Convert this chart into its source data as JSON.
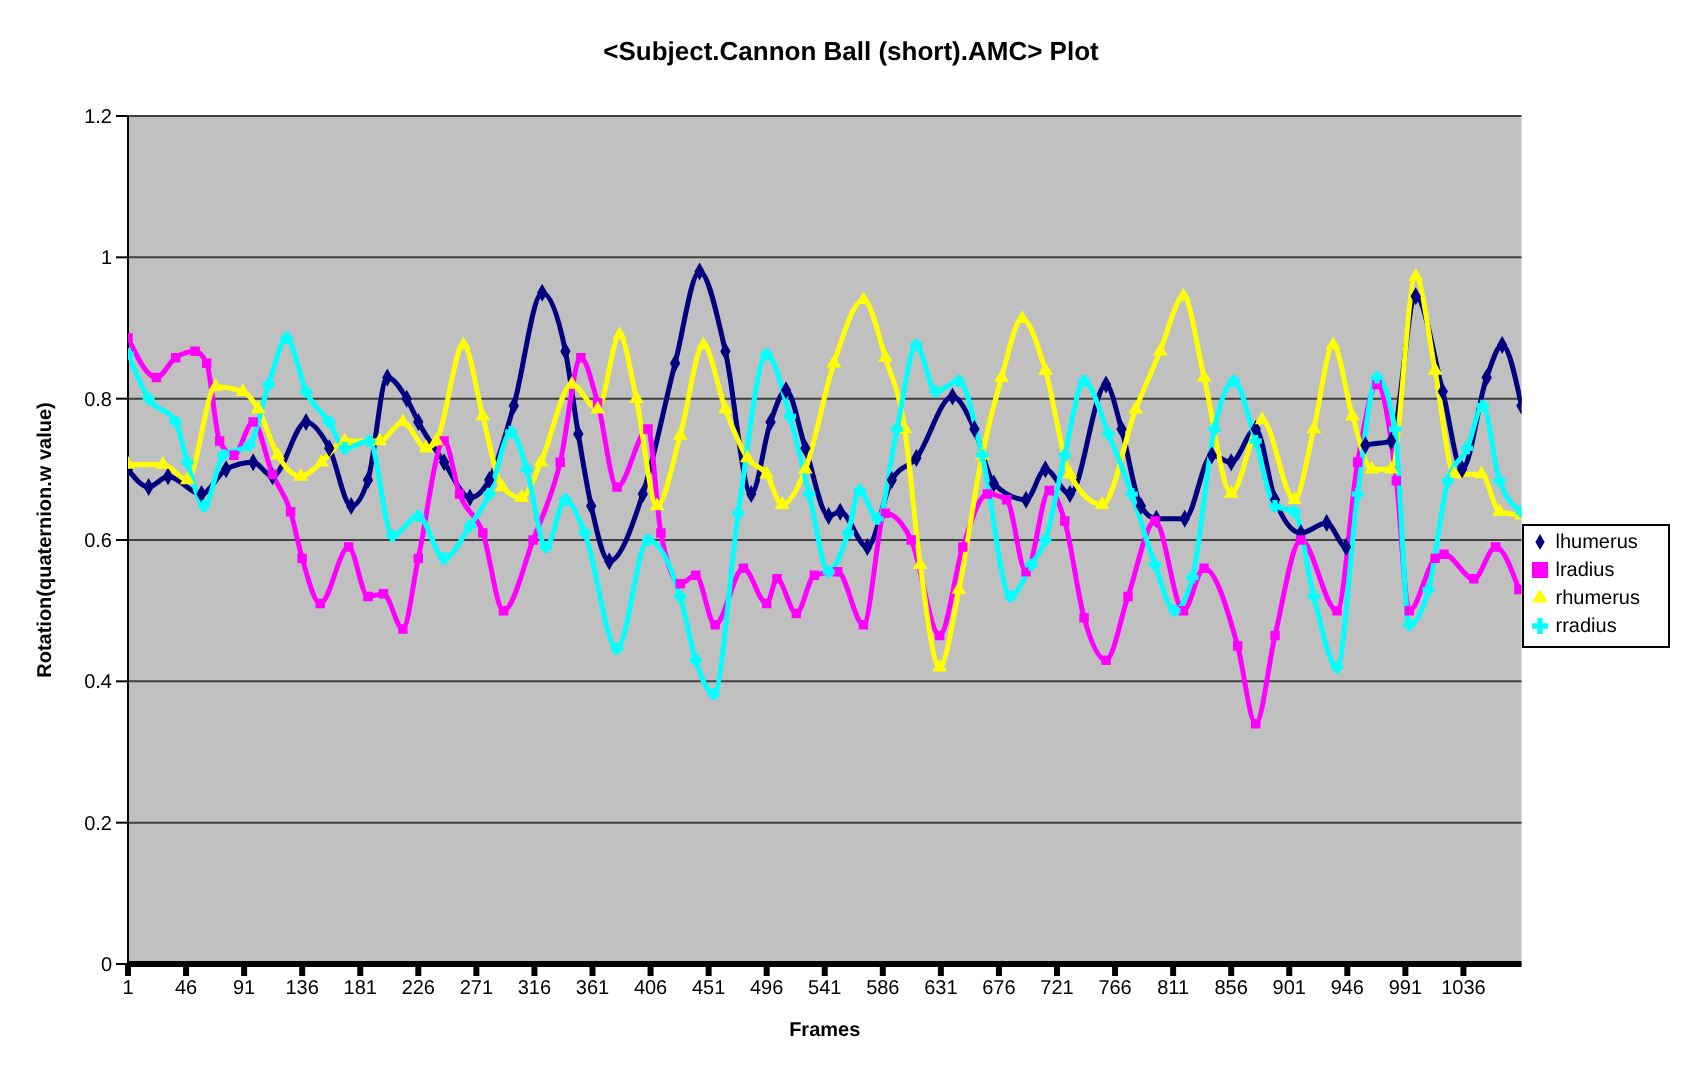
{
  "chart_data": {
    "type": "line",
    "title": "<Subject.Cannon Ball (short).AMC> Plot",
    "xlabel": "Frames",
    "ylabel": "Rotation(quaternion.w value)",
    "xlim": [
      1,
      1081
    ],
    "xticks": [
      1,
      46,
      91,
      136,
      181,
      226,
      271,
      316,
      361,
      406,
      451,
      496,
      541,
      586,
      631,
      676,
      721,
      766,
      811,
      856,
      901,
      946,
      991,
      1036
    ],
    "ylim": [
      0,
      1.2
    ],
    "yticks": [
      0,
      0.2,
      0.4,
      0.6,
      0.8,
      1,
      1.2
    ],
    "grid": "y",
    "legend": "right",
    "line_style": "solid",
    "series": [
      {
        "name": "lhumerus",
        "color": "#000080",
        "marker": "diamond",
        "x": [
          1,
          17,
          32,
          58,
          77,
          98,
          113,
          139,
          157,
          174,
          187,
          202,
          217,
          226,
          246,
          266,
          281,
          300,
          322,
          340,
          350,
          360,
          374,
          400,
          425,
          444,
          464,
          484,
          499,
          511,
          526,
          544,
          553,
          574,
          593,
          612,
          640,
          657,
          672,
          697,
          712,
          731,
          759,
          771,
          786,
          798,
          820,
          841,
          856,
          875,
          890,
          910,
          930,
          945,
          960,
          980,
          999,
          1020,
          1035,
          1054,
          1066,
          1081
        ],
        "values": [
          0.7,
          0.675,
          0.69,
          0.665,
          0.7,
          0.71,
          0.69,
          0.767,
          0.73,
          0.648,
          0.685,
          0.83,
          0.8,
          0.767,
          0.71,
          0.66,
          0.685,
          0.79,
          0.95,
          0.867,
          0.75,
          0.648,
          0.57,
          0.665,
          0.85,
          0.98,
          0.867,
          0.665,
          0.767,
          0.812,
          0.73,
          0.634,
          0.64,
          0.59,
          0.685,
          0.716,
          0.803,
          0.757,
          0.68,
          0.657,
          0.7,
          0.665,
          0.82,
          0.757,
          0.648,
          0.63,
          0.63,
          0.72,
          0.71,
          0.757,
          0.657,
          0.61,
          0.624,
          0.59,
          0.734,
          0.74,
          0.945,
          0.81,
          0.7,
          0.83,
          0.876,
          0.79
        ]
      },
      {
        "name": "lradius",
        "color": "#ff00ff",
        "marker": "square",
        "x": [
          1,
          23,
          38,
          53,
          62,
          72,
          83,
          98,
          113,
          127,
          136,
          150,
          172,
          187,
          199,
          214,
          226,
          246,
          258,
          276,
          292,
          315,
          336,
          352,
          365,
          380,
          404,
          414,
          429,
          441,
          456,
          478,
          496,
          504,
          519,
          533,
          551,
          571,
          588,
          608,
          630,
          648,
          667,
          682,
          697,
          715,
          727,
          742,
          759,
          776,
          797,
          819,
          835,
          861,
          875,
          890,
          910,
          938,
          954,
          969,
          984,
          994,
          1014,
          1021,
          1044,
          1061,
          1079
        ],
        "values": [
          0.886,
          0.83,
          0.858,
          0.867,
          0.85,
          0.74,
          0.72,
          0.767,
          0.693,
          0.64,
          0.574,
          0.51,
          0.59,
          0.52,
          0.524,
          0.474,
          0.574,
          0.74,
          0.665,
          0.61,
          0.5,
          0.6,
          0.71,
          0.858,
          0.794,
          0.675,
          0.757,
          0.61,
          0.538,
          0.55,
          0.48,
          0.56,
          0.51,
          0.545,
          0.496,
          0.55,
          0.555,
          0.48,
          0.638,
          0.6,
          0.465,
          0.59,
          0.665,
          0.657,
          0.555,
          0.67,
          0.627,
          0.49,
          0.43,
          0.52,
          0.627,
          0.5,
          0.56,
          0.45,
          0.34,
          0.465,
          0.6,
          0.5,
          0.71,
          0.82,
          0.684,
          0.5,
          0.574,
          0.58,
          0.545,
          0.59,
          0.53
        ]
      },
      {
        "name": "rhumerus",
        "color": "#ffff00",
        "marker": "triangle",
        "x": [
          1,
          28,
          47,
          69,
          90,
          102,
          117,
          135,
          151,
          169,
          196,
          214,
          232,
          240,
          261,
          276,
          291,
          306,
          321,
          345,
          365,
          382,
          395,
          411,
          429,
          447,
          464,
          481,
          496,
          508,
          526,
          548,
          571,
          588,
          603,
          615,
          630,
          645,
          663,
          678,
          694,
          712,
          731,
          756,
          782,
          801,
          819,
          835,
          856,
          880,
          905,
          920,
          935,
          950,
          965,
          980,
          999,
          1014,
          1029,
          1050,
          1064,
          1081
        ],
        "values": [
          0.707,
          0.707,
          0.685,
          0.817,
          0.81,
          0.785,
          0.72,
          0.69,
          0.71,
          0.74,
          0.74,
          0.767,
          0.73,
          0.74,
          0.876,
          0.775,
          0.675,
          0.66,
          0.71,
          0.82,
          0.785,
          0.89,
          0.8,
          0.648,
          0.748,
          0.876,
          0.785,
          0.716,
          0.693,
          0.65,
          0.7,
          0.85,
          0.94,
          0.858,
          0.757,
          0.565,
          0.42,
          0.53,
          0.72,
          0.83,
          0.913,
          0.84,
          0.693,
          0.65,
          0.785,
          0.867,
          0.945,
          0.83,
          0.666,
          0.77,
          0.657,
          0.757,
          0.876,
          0.775,
          0.7,
          0.7,
          0.973,
          0.84,
          0.693,
          0.693,
          0.64,
          0.635
        ]
      },
      {
        "name": "rradius",
        "color": "#00ffff",
        "marker": "cross",
        "x": [
          1,
          17,
          38,
          47,
          60,
          75,
          95,
          110,
          124,
          139,
          157,
          169,
          188,
          206,
          226,
          246,
          266,
          281,
          298,
          310,
          325,
          340,
          355,
          380,
          404,
          429,
          441,
          455,
          474,
          496,
          514,
          529,
          544,
          559,
          568,
          582,
          597,
          612,
          627,
          645,
          663,
          685,
          701,
          712,
          727,
          742,
          761,
          779,
          797,
          812,
          826,
          843,
          858,
          875,
          890,
          905,
          920,
          938,
          954,
          969,
          983,
          994,
          1009,
          1024,
          1039,
          1051,
          1064,
          1081
        ],
        "values": [
          0.863,
          0.8,
          0.767,
          0.71,
          0.648,
          0.72,
          0.734,
          0.82,
          0.886,
          0.81,
          0.767,
          0.73,
          0.74,
          0.606,
          0.634,
          0.574,
          0.62,
          0.665,
          0.753,
          0.7,
          0.59,
          0.657,
          0.61,
          0.446,
          0.6,
          0.52,
          0.43,
          0.382,
          0.638,
          0.863,
          0.775,
          0.665,
          0.555,
          0.61,
          0.67,
          0.63,
          0.757,
          0.876,
          0.81,
          0.825,
          0.72,
          0.52,
          0.565,
          0.6,
          0.72,
          0.825,
          0.75,
          0.665,
          0.565,
          0.5,
          0.547,
          0.757,
          0.825,
          0.74,
          0.648,
          0.64,
          0.52,
          0.42,
          0.665,
          0.83,
          0.757,
          0.48,
          0.53,
          0.684,
          0.73,
          0.79,
          0.684,
          0.64
        ]
      }
    ]
  }
}
